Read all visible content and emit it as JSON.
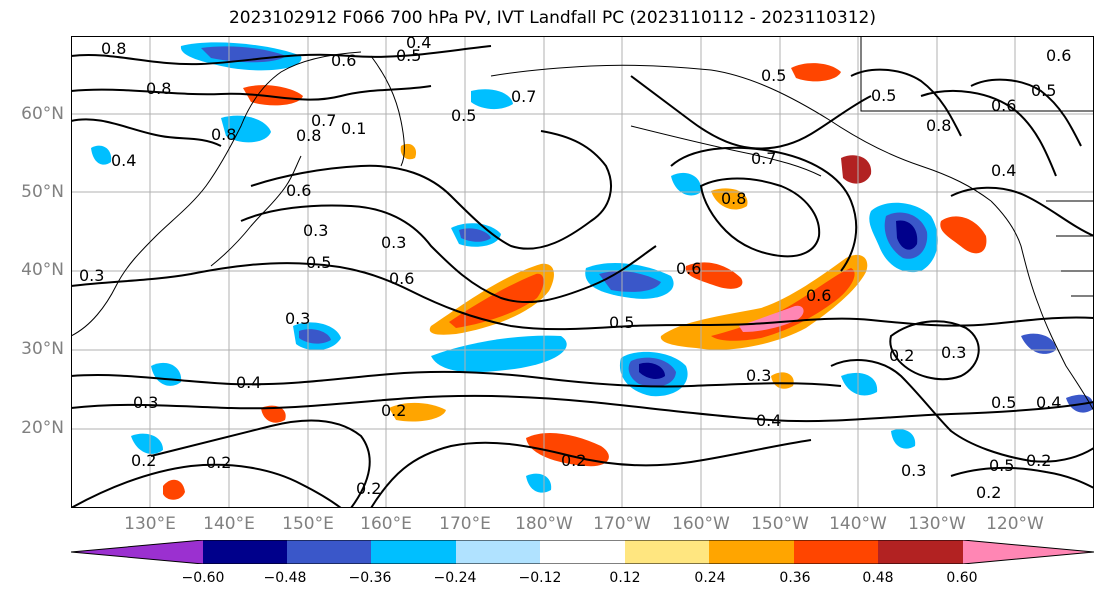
{
  "title": "2023102912 F066 700 hPa PV, IVT Landfall PC (2023110112 - 2023110312)",
  "lat_labels": [
    "60°N",
    "50°N",
    "40°N",
    "30°N",
    "20°N"
  ],
  "lon_labels": [
    "130°E",
    "140°E",
    "150°E",
    "160°E",
    "170°E",
    "180°W",
    "170°W",
    "160°W",
    "150°W",
    "140°W",
    "130°W",
    "120°W"
  ],
  "contour_labels": [
    "0.8",
    "0.8",
    "0.8",
    "0.6",
    "0.5",
    "0.4",
    "0.5",
    "0.6",
    "0.8",
    "0.7",
    "0.5",
    "0.7",
    "0.4",
    "0.5",
    "0.6",
    "0.8",
    "0.8",
    "0.6",
    "0.1",
    "0.7",
    "0.5",
    "0.6",
    "0.4",
    "0.5",
    "0.3",
    "0.3",
    "0.6",
    "0.5",
    "0.3",
    "0.4",
    "0.3",
    "0.2",
    "0.2",
    "0.3",
    "0.6",
    "0.3",
    "0.4",
    "0.2",
    "0.2",
    "0.3",
    "0.5",
    "0.2",
    "0.4",
    "0.5",
    "0.2",
    "0.2",
    "0.2",
    "0.3"
  ],
  "colorbar": {
    "ticks": [
      "−0.60",
      "−0.48",
      "−0.36",
      "−0.24",
      "−0.12",
      "0.12",
      "0.24",
      "0.36",
      "0.48",
      "0.60"
    ],
    "colors": [
      "#9b30d0",
      "#00008b",
      "#3a57c9",
      "#00bfff",
      "#b0e2ff",
      "#ffffff",
      "#ffe680",
      "#ffa500",
      "#ff4500",
      "#b22222",
      "#ff86b4",
      "#ff86b4"
    ]
  }
}
